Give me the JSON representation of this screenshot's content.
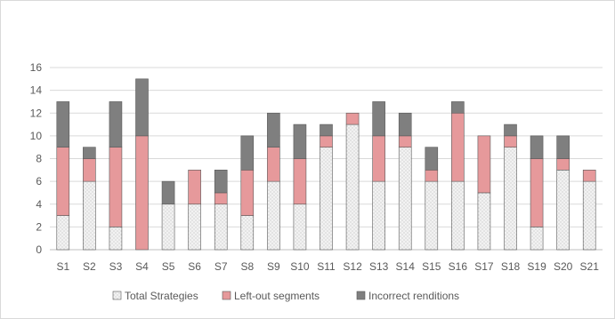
{
  "chart_data": {
    "type": "bar",
    "stacked": true,
    "categories": [
      "S1",
      "S2",
      "S3",
      "S4",
      "S5",
      "S6",
      "S7",
      "S8",
      "S9",
      "S10",
      "S11",
      "S12",
      "S13",
      "S14",
      "S15",
      "S16",
      "S17",
      "S18",
      "S19",
      "S20",
      "S21"
    ],
    "series": [
      {
        "name": "Total Strategies",
        "color": "#f2f2f2",
        "pattern": "dotted",
        "values": [
          3,
          6,
          2,
          0,
          4,
          4,
          4,
          3,
          6,
          4,
          9,
          11,
          6,
          9,
          6,
          6,
          5,
          9,
          2,
          7,
          6
        ]
      },
      {
        "name": "Left-out segments",
        "color": "#e6999b",
        "values": [
          6,
          2,
          7,
          10,
          0,
          3,
          1,
          4,
          3,
          4,
          1,
          1,
          4,
          1,
          1,
          6,
          5,
          1,
          6,
          1,
          1
        ]
      },
      {
        "name": "Incorrect renditions",
        "color": "#7f7f7f",
        "values": [
          4,
          1,
          4,
          5,
          2,
          0,
          2,
          3,
          3,
          3,
          1,
          0,
          3,
          2,
          2,
          1,
          0,
          1,
          2,
          2,
          0
        ]
      }
    ],
    "ylim": [
      0,
      16
    ],
    "yticks": [
      "0",
      "2",
      "4",
      "6",
      "8",
      "10",
      "12",
      "14",
      "16"
    ],
    "grid": true,
    "legend": "bottom"
  }
}
